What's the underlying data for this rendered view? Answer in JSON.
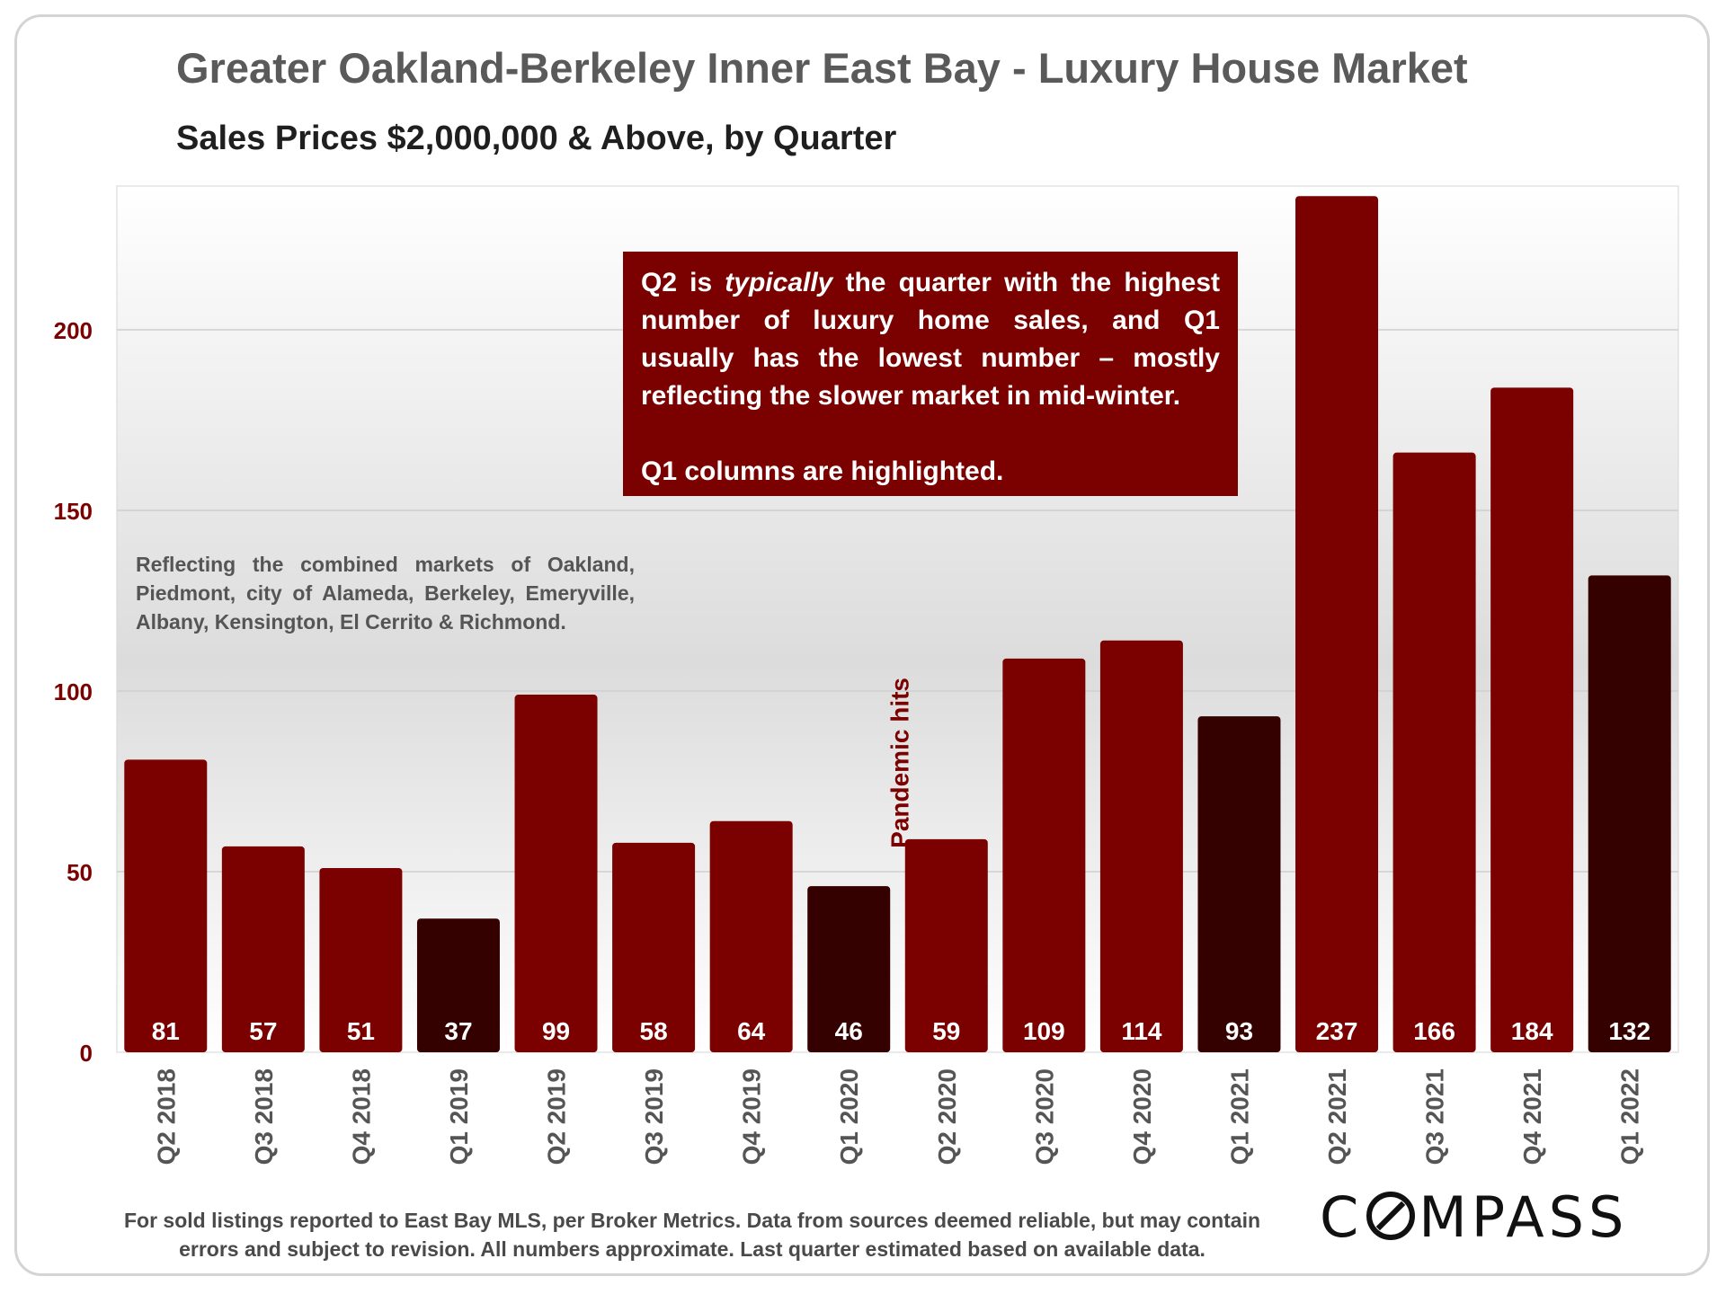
{
  "chart_data": {
    "type": "bar",
    "title": "Greater Oakland-Berkeley Inner East Bay - Luxury House Market",
    "subtitle": "Sales Prices $2,000,000 & Above, by Quarter",
    "xlabel": "",
    "ylabel": "",
    "ylim": [
      0,
      240
    ],
    "yticks": [
      0,
      50,
      100,
      150,
      200
    ],
    "grid": true,
    "categories": [
      "Q2 2018",
      "Q3 2018",
      "Q4 2018",
      "Q1 2019",
      "Q2 2019",
      "Q3 2019",
      "Q4 2019",
      "Q1 2020",
      "Q2 2020",
      "Q3 2020",
      "Q4 2020",
      "Q1 2021",
      "Q2 2021",
      "Q3 2021",
      "Q4 2021",
      "Q1 2022"
    ],
    "values": [
      81,
      57,
      51,
      37,
      99,
      58,
      64,
      46,
      59,
      109,
      114,
      93,
      237,
      166,
      184,
      132
    ],
    "highlighted": [
      "Q1 2019",
      "Q1 2020",
      "Q1 2021",
      "Q1 2022"
    ],
    "colors": {
      "regular": "#7b0000",
      "highlight": "#350000",
      "label_text": "#ffffff",
      "axis_text": "#7b0000"
    },
    "annotation_vertical": "Pandemic hits",
    "callout": {
      "line1_pre": "Q2 is ",
      "line1_em": "typically",
      "line1_post": " the quarter with the highest number of luxury home sales, and Q1 usually has the lowest number – mostly reflecting the slower market in mid-winter.",
      "line2": "Q1 columns are highlighted."
    },
    "note": "Reflecting the combined markets of Oakland, Piedmont, city of Alameda, Berkeley, Emeryville, Albany, Kensington, El Cerrito & Richmond.",
    "footer_line1": "For sold listings reported to East Bay MLS, per Broker Metrics. Data from sources deemed reliable, but may contain",
    "footer_line2": "errors and subject to revision. All numbers approximate. Last quarter estimated based on available data.",
    "logo": {
      "pre": "C",
      "post": "MPASS"
    }
  }
}
